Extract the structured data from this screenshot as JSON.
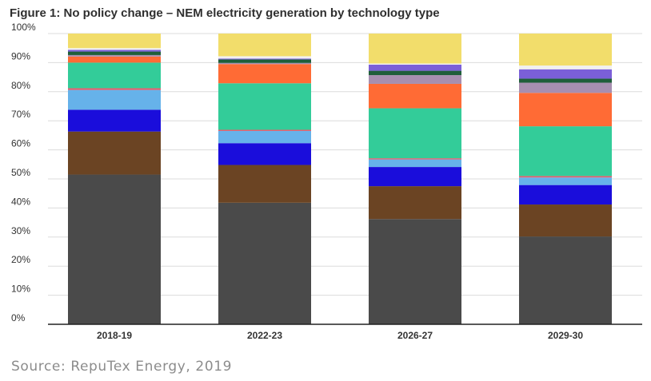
{
  "title": "Figure 1: No policy change – NEM electricity generation by technology type",
  "source": "Source: RepuTex Energy, 2019",
  "colors": {
    "axis_text": "#333333",
    "grid": "#dcdcdc",
    "axis_line": "#222222",
    "segments": [
      "#4a4a4a",
      "#6b4423",
      "#1a0ddb",
      "#66b2ea",
      "#e45b6b",
      "#33cc99",
      "#ff6b35",
      "#a78fb0",
      "#1f5e3a",
      "#7b5fd8",
      "#f1f0f0",
      "#f2dd6b"
    ]
  },
  "chart_data": {
    "type": "bar",
    "stacked": true,
    "title": "Figure 1: No policy change – NEM electricity generation by technology type",
    "xlabel": "",
    "ylabel": "",
    "ylim": [
      0,
      100
    ],
    "yticks": [
      "0%",
      "10%",
      "20%",
      "30%",
      "40%",
      "50%",
      "60%",
      "70%",
      "80%",
      "90%",
      "100%"
    ],
    "categories": [
      "2018-19",
      "2022-23",
      "2026-27",
      "2029-30"
    ],
    "grid": true,
    "legend": "none",
    "series": [
      {
        "values": [
          51.5,
          41.8,
          36.2,
          30.2
        ]
      },
      {
        "values": [
          14.8,
          13.0,
          11.3,
          11.0
        ]
      },
      {
        "values": [
          7.5,
          7.5,
          6.6,
          6.7
        ]
      },
      {
        "values": [
          6.8,
          4.2,
          2.6,
          2.6
        ]
      },
      {
        "values": [
          0.6,
          0.4,
          0.4,
          0.5
        ]
      },
      {
        "values": [
          8.8,
          16.0,
          17.2,
          17.1
        ]
      },
      {
        "values": [
          2.1,
          6.6,
          8.4,
          11.5
        ]
      },
      {
        "values": [
          0.5,
          0.4,
          3.0,
          3.5
        ]
      },
      {
        "values": [
          1.2,
          1.2,
          1.5,
          1.4
        ]
      },
      {
        "values": [
          0.6,
          0.3,
          2.1,
          3.2
        ]
      },
      {
        "values": [
          0.6,
          0.8,
          0.4,
          1.3
        ]
      },
      {
        "values": [
          5.0,
          7.8,
          10.3,
          11.0
        ]
      }
    ]
  }
}
